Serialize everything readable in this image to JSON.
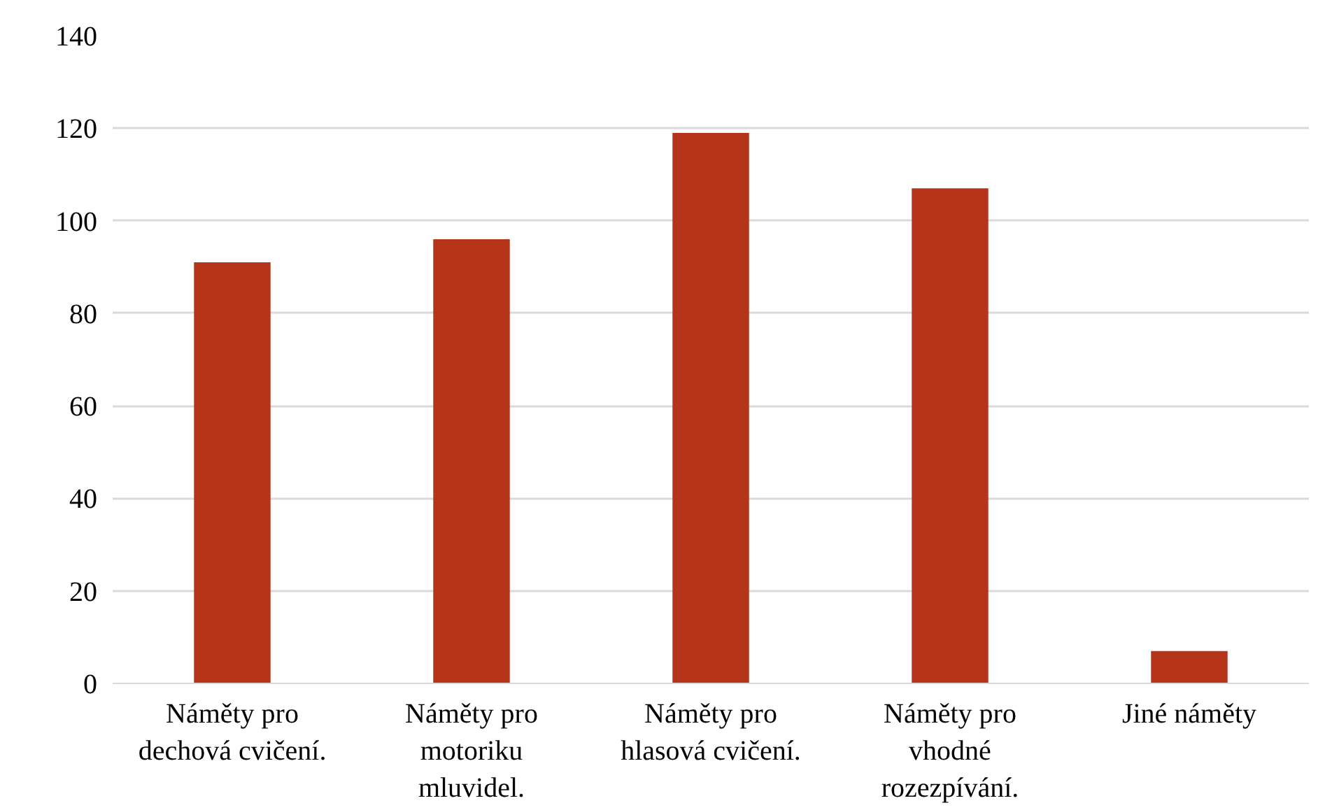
{
  "chart_data": {
    "type": "bar",
    "categories": [
      "Náměty pro\ndechová cvičení.",
      "Náměty pro\nmotoriku\nmluvidel.",
      "Náměty pro\nhlasová cvičení.",
      "Náměty pro\nvhodné\nrozezpívání.",
      "Jiné náměty"
    ],
    "values": [
      91,
      96,
      119,
      107,
      7
    ],
    "color": "#b5341a",
    "ylim": [
      0,
      140
    ],
    "yticks": [
      0,
      20,
      40,
      60,
      80,
      100,
      120,
      140
    ],
    "grid": "y"
  }
}
